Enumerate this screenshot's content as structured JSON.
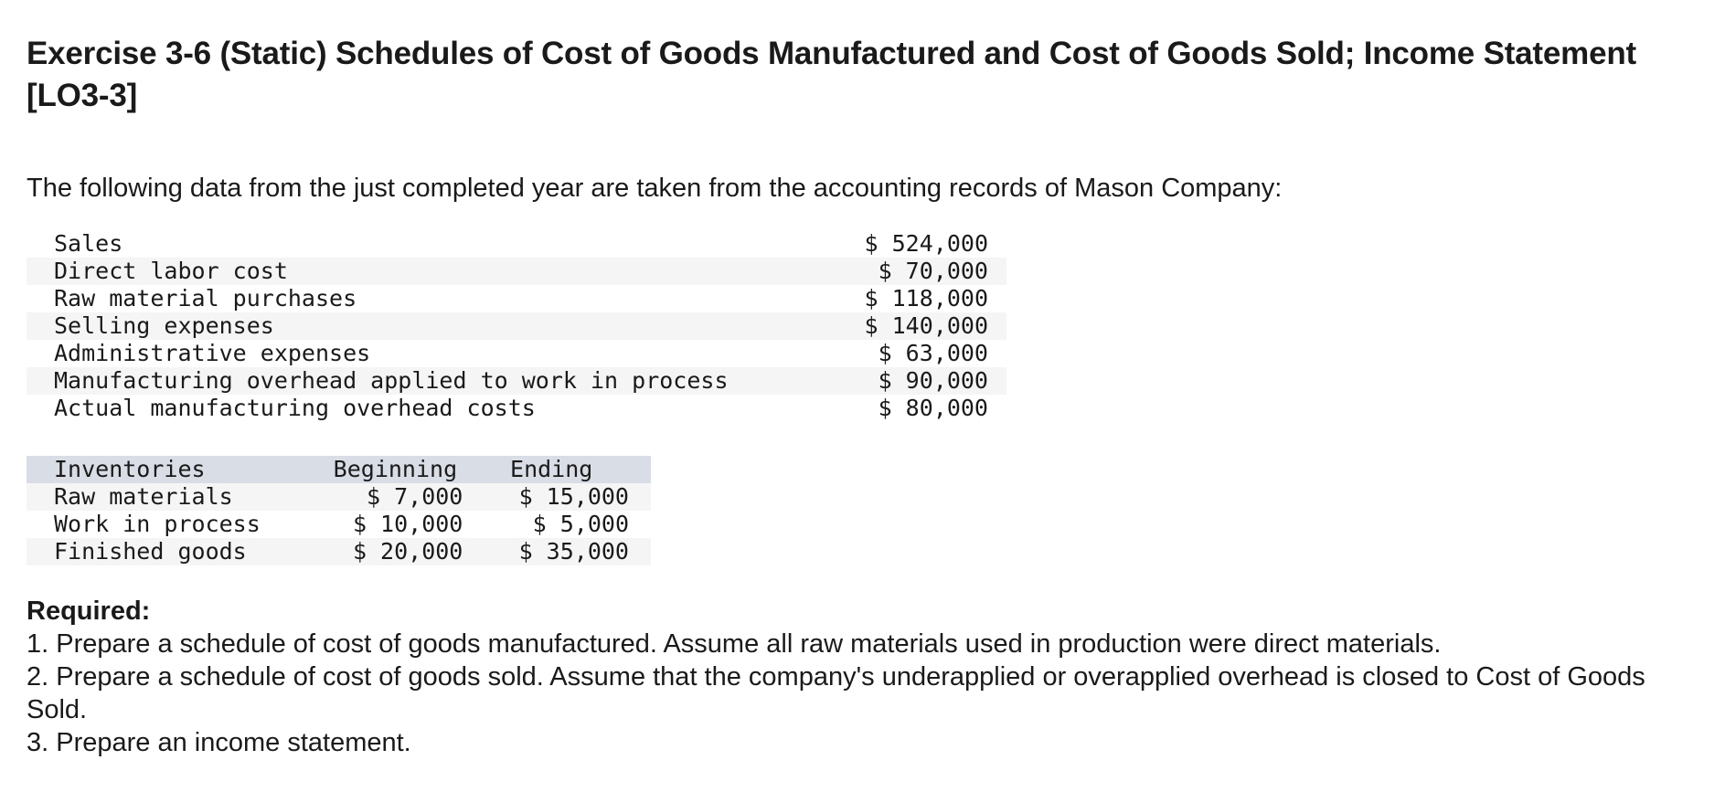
{
  "title": "Exercise 3-6 (Static) Schedules of Cost of Goods Manufactured and Cost of Goods Sold; Income Statement [LO3-3]",
  "intro": "The following data from the just completed year are taken from the accounting records of Mason Company:",
  "data_rows": [
    {
      "label": "Sales",
      "value": "$ 524,000"
    },
    {
      "label": "Direct labor cost",
      "value": "$ 70,000"
    },
    {
      "label": "Raw material purchases",
      "value": "$ 118,000"
    },
    {
      "label": "Selling expenses",
      "value": "$ 140,000"
    },
    {
      "label": "Administrative expenses",
      "value": "$ 63,000"
    },
    {
      "label": "Manufacturing overhead applied to work in process",
      "value": "$ 90,000"
    },
    {
      "label": "Actual manufacturing overhead costs",
      "value": "$ 80,000"
    }
  ],
  "inventories": {
    "headers": {
      "label": "Inventories",
      "beginning": "Beginning",
      "ending": "Ending"
    },
    "rows": [
      {
        "label": "Raw materials",
        "beginning": "$ 7,000",
        "ending": "$ 15,000"
      },
      {
        "label": "Work in process",
        "beginning": "$ 10,000",
        "ending": "$ 5,000"
      },
      {
        "label": "Finished goods",
        "beginning": "$ 20,000",
        "ending": "$ 35,000"
      }
    ]
  },
  "required": {
    "title": "Required:",
    "items": [
      "1. Prepare a schedule of cost of goods manufactured. Assume all raw materials used in production were direct materials.",
      "2. Prepare a schedule of cost of goods sold. Assume that the company's underapplied or overapplied overhead is closed to Cost of Goods Sold.",
      "3. Prepare an income statement."
    ]
  }
}
